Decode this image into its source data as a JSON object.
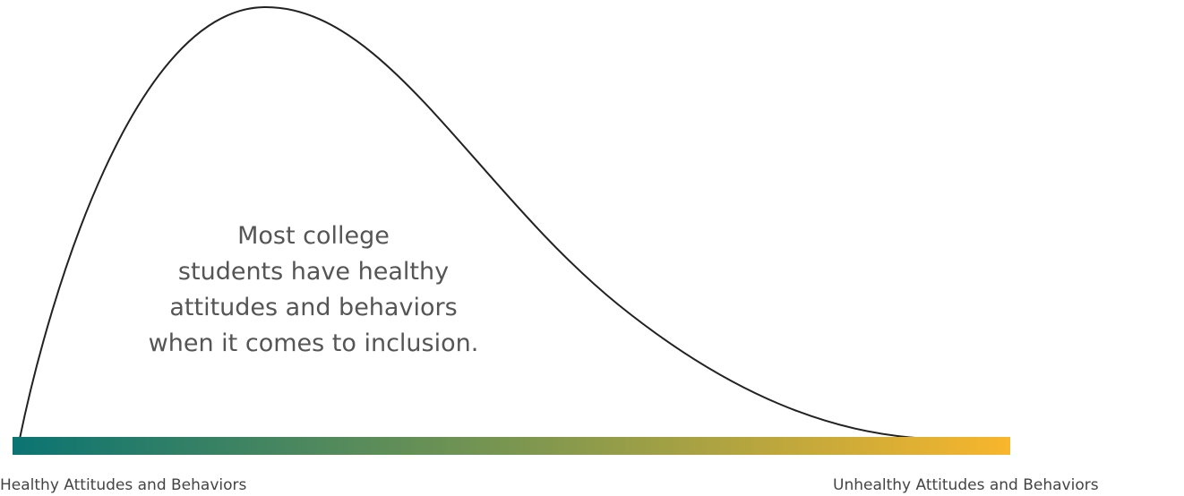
{
  "diagram": {
    "message": [
      "Most college",
      "students have healthy",
      "attitudes and behaviors",
      "when it comes to inclusion."
    ],
    "left_label": "Healthy Attitudes and Behaviors",
    "right_label": "Unhealthy Attitudes and Behaviors"
  }
}
